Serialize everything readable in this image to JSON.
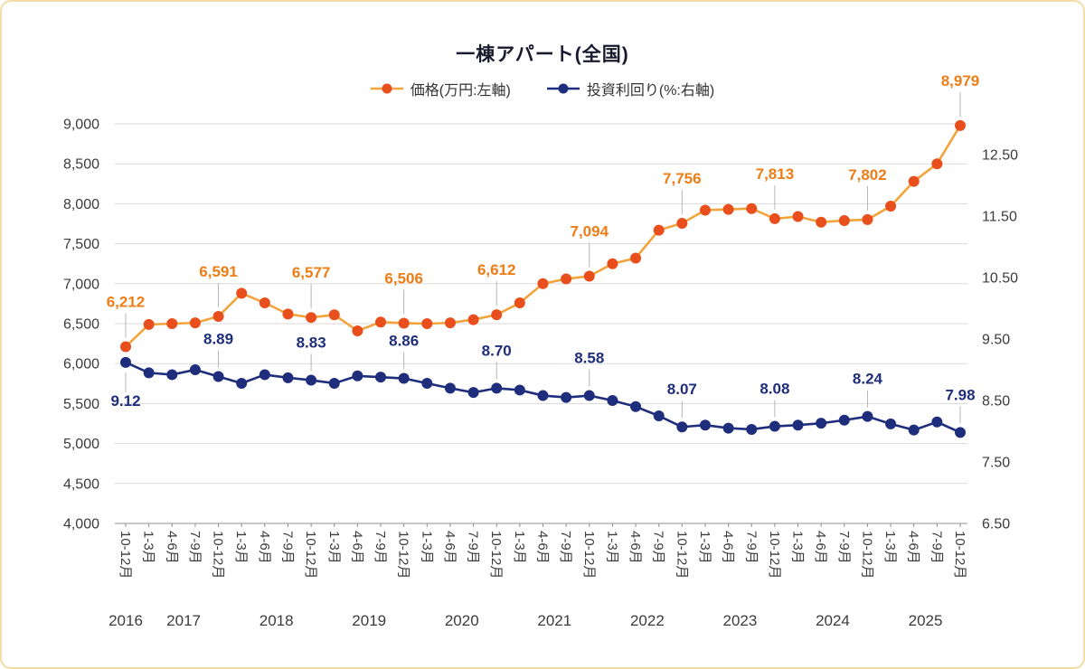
{
  "frame": {
    "border_color": "#F3DAA6"
  },
  "chart_data": {
    "type": "line",
    "title": "一棟アパート(全国)",
    "legend_position": "top",
    "grid": true,
    "left_axis": {
      "min": 4000,
      "max": 9000,
      "step": 500,
      "ticks": [
        {
          "value": 9000,
          "label": "9,000"
        },
        {
          "value": 8500,
          "label": "8,500"
        },
        {
          "value": 8000,
          "label": "8,000"
        },
        {
          "value": 7500,
          "label": "7,500"
        },
        {
          "value": 7000,
          "label": "7,000"
        },
        {
          "value": 6500,
          "label": "6,500"
        },
        {
          "value": 6000,
          "label": "6,000"
        },
        {
          "value": 5500,
          "label": "5,500"
        },
        {
          "value": 5000,
          "label": "5,000"
        },
        {
          "value": 4500,
          "label": "4,500"
        },
        {
          "value": 4000,
          "label": "4,000"
        }
      ]
    },
    "right_axis": {
      "min": 6.5,
      "max": 13.0,
      "step": 1.0,
      "ticks": [
        {
          "value": 12.5,
          "label": "12.50"
        },
        {
          "value": 11.5,
          "label": "11.50"
        },
        {
          "value": 10.5,
          "label": "10.50"
        },
        {
          "value": 9.5,
          "label": "9.50"
        },
        {
          "value": 8.5,
          "label": "8.50"
        },
        {
          "value": 7.5,
          "label": "7.50"
        },
        {
          "value": 6.5,
          "label": "6.50"
        }
      ]
    },
    "x_quarter_labels": [
      "10-12月",
      "1-3月",
      "4-6月",
      "7-9月",
      "10-12月",
      "1-3月",
      "4-6月",
      "7-9月",
      "10-12月",
      "1-3月",
      "4-6月",
      "7-9月",
      "10-12月",
      "1-3月",
      "4-6月",
      "7-9月",
      "10-12月",
      "1-3月",
      "4-6月",
      "7-9月",
      "10-12月",
      "1-3月",
      "4-6月",
      "7-9月",
      "10-12月",
      "1-3月",
      "4-6月",
      "7-9月",
      "10-12月",
      "1-3月",
      "4-6月",
      "7-9月",
      "10-12月",
      "1-3月",
      "4-6月",
      "7-9月",
      "10-12月"
    ],
    "x_year_labels": [
      {
        "label": "2016",
        "center_index": 0
      },
      {
        "label": "2017",
        "center_index": 2.5
      },
      {
        "label": "2018",
        "center_index": 6.5
      },
      {
        "label": "2019",
        "center_index": 10.5
      },
      {
        "label": "2020",
        "center_index": 14.5
      },
      {
        "label": "2021",
        "center_index": 18.5
      },
      {
        "label": "2022",
        "center_index": 22.5
      },
      {
        "label": "2023",
        "center_index": 26.5
      },
      {
        "label": "2024",
        "center_index": 30.5
      },
      {
        "label": "2025",
        "center_index": 34.5
      }
    ],
    "series": [
      {
        "name": "価格(万円:左軸)",
        "axis": "left",
        "line_color": "#F2A43C",
        "marker_color": "#E94F1C",
        "label_color": "#ED7D14",
        "values": [
          6212,
          6490,
          6500,
          6510,
          6591,
          6880,
          6760,
          6620,
          6577,
          6610,
          6410,
          6520,
          6506,
          6500,
          6510,
          6550,
          6612,
          6760,
          7000,
          7060,
          7094,
          7250,
          7320,
          7670,
          7756,
          7920,
          7930,
          7940,
          7813,
          7840,
          7770,
          7790,
          7802,
          7970,
          8280,
          8500,
          8979
        ],
        "point_labels": [
          {
            "index": 0,
            "text": "6,212"
          },
          {
            "index": 4,
            "text": "6,591"
          },
          {
            "index": 8,
            "text": "6,577"
          },
          {
            "index": 12,
            "text": "6,506"
          },
          {
            "index": 16,
            "text": "6,612"
          },
          {
            "index": 20,
            "text": "7,094"
          },
          {
            "index": 24,
            "text": "7,756"
          },
          {
            "index": 28,
            "text": "7,813"
          },
          {
            "index": 32,
            "text": "7,802"
          },
          {
            "index": 36,
            "text": "8,979"
          }
        ]
      },
      {
        "name": "投資利回り(%:右軸)",
        "axis": "right",
        "line_color": "#1F2E7C",
        "marker_color": "#1F2E7C",
        "label_color": "#1F2E7C",
        "values": [
          9.12,
          8.95,
          8.92,
          9.0,
          8.89,
          8.78,
          8.92,
          8.87,
          8.83,
          8.78,
          8.9,
          8.88,
          8.86,
          8.78,
          8.7,
          8.63,
          8.7,
          8.67,
          8.58,
          8.55,
          8.58,
          8.5,
          8.4,
          8.25,
          8.07,
          8.1,
          8.05,
          8.03,
          8.08,
          8.1,
          8.13,
          8.18,
          8.24,
          8.12,
          8.02,
          8.15,
          7.98
        ],
        "point_labels": [
          {
            "index": 0,
            "text": "9.12",
            "position": "below"
          },
          {
            "index": 4,
            "text": "8.89"
          },
          {
            "index": 8,
            "text": "8.83"
          },
          {
            "index": 12,
            "text": "8.86"
          },
          {
            "index": 16,
            "text": "8.70"
          },
          {
            "index": 20,
            "text": "8.58"
          },
          {
            "index": 24,
            "text": "8.07"
          },
          {
            "index": 28,
            "text": "8.08"
          },
          {
            "index": 32,
            "text": "8.24"
          },
          {
            "index": 36,
            "text": "7.98"
          }
        ]
      }
    ]
  }
}
